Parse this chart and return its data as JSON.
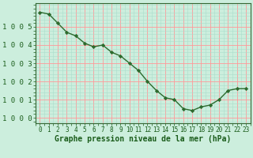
{
  "x": [
    0,
    1,
    2,
    3,
    4,
    5,
    6,
    7,
    8,
    9,
    10,
    11,
    12,
    13,
    14,
    15,
    16,
    17,
    18,
    19,
    20,
    21,
    22,
    23
  ],
  "y": [
    1005.8,
    1005.7,
    1005.2,
    1004.7,
    1004.5,
    1004.1,
    1003.9,
    1004.0,
    1003.6,
    1003.4,
    1003.0,
    1002.6,
    1002.0,
    1001.5,
    1001.1,
    1001.0,
    1000.5,
    1000.4,
    1000.6,
    1000.7,
    1001.0,
    1001.5,
    1001.6,
    1001.6
  ],
  "line_color": "#2d6a2d",
  "marker": "D",
  "marker_size": 2.2,
  "line_width": 1.0,
  "bg_color": "#cceedd",
  "grid_color_major": "#ff9999",
  "grid_color_minor": "#aaddcc",
  "xlabel": "Graphe pression niveau de la mer (hPa)",
  "xlabel_fontsize": 7,
  "xlabel_color": "#1a5c1a",
  "tick_label_color": "#1a5c1a",
  "ytick_fontsize": 6.5,
  "xtick_fontsize": 5.5,
  "ylim": [
    999.7,
    1006.3
  ],
  "yticks": [
    1000,
    1001,
    1002,
    1003,
    1004,
    1005
  ],
  "xticks": [
    0,
    1,
    2,
    3,
    4,
    5,
    6,
    7,
    8,
    9,
    10,
    11,
    12,
    13,
    14,
    15,
    16,
    17,
    18,
    19,
    20,
    21,
    22,
    23
  ],
  "xlim": [
    -0.5,
    23.5
  ]
}
